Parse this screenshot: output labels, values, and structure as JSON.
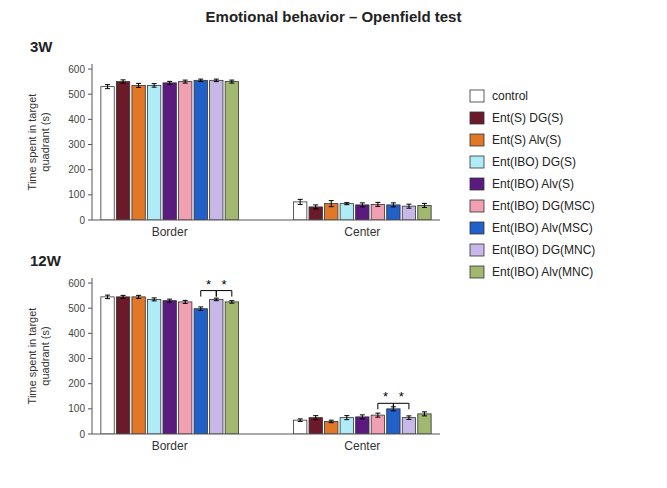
{
  "title": "Emotional behavior –  Openfield test",
  "chart_data": [
    {
      "type": "bar",
      "title": "3W",
      "ylabel": "Time spent in target\nquadrant (s)",
      "categories": [
        "Border",
        "Center"
      ],
      "series": [
        {
          "name": "control",
          "color": "#ffffff",
          "values": [
            530,
            72
          ],
          "errors": [
            8,
            10
          ]
        },
        {
          "name": "Ent(S) DG(S)",
          "color": "#6b1a2a",
          "values": [
            550,
            52
          ],
          "errors": [
            7,
            8
          ]
        },
        {
          "name": "Ent(S) Alv(S)",
          "color": "#e07828",
          "values": [
            535,
            65
          ],
          "errors": [
            8,
            12
          ]
        },
        {
          "name": "Ent(IBO) DG(S)",
          "color": "#b0ecf8",
          "values": [
            535,
            65
          ],
          "errors": [
            7,
            4
          ]
        },
        {
          "name": "Ent(IBO) Alv(S)",
          "color": "#5a1a80",
          "values": [
            545,
            60
          ],
          "errors": [
            6,
            8
          ]
        },
        {
          "name": "Ent(IBO) DG(MSC)",
          "color": "#f0a0b0",
          "values": [
            550,
            62
          ],
          "errors": [
            6,
            8
          ]
        },
        {
          "name": "Ent(IBO) Alv(MSC)",
          "color": "#2060c8",
          "values": [
            555,
            60
          ],
          "errors": [
            5,
            8
          ]
        },
        {
          "name": "Ent(IBO) DG(MNC)",
          "color": "#c8b8e8",
          "values": [
            555,
            55
          ],
          "errors": [
            5,
            8
          ]
        },
        {
          "name": "Ent(IBO) Alv(MNC)",
          "color": "#a0b870",
          "values": [
            550,
            58
          ],
          "errors": [
            6,
            8
          ]
        }
      ],
      "ylim": [
        0,
        620
      ],
      "yticks": [
        0,
        100,
        200,
        300,
        400,
        500,
        600
      ],
      "grid": false,
      "legend": "right"
    },
    {
      "type": "bar",
      "title": "12W",
      "ylabel": "Time spent in target\nquadrant (s)",
      "categories": [
        "Border",
        "Center"
      ],
      "series": [
        {
          "name": "control",
          "color": "#ffffff",
          "values": [
            545,
            55
          ],
          "errors": [
            7,
            5
          ]
        },
        {
          "name": "Ent(S) DG(S)",
          "color": "#6b1a2a",
          "values": [
            545,
            65
          ],
          "errors": [
            6,
            8
          ]
        },
        {
          "name": "Ent(S) Alv(S)",
          "color": "#e07828",
          "values": [
            545,
            50
          ],
          "errors": [
            6,
            5
          ]
        },
        {
          "name": "Ent(IBO) DG(S)",
          "color": "#b0ecf8",
          "values": [
            535,
            65
          ],
          "errors": [
            6,
            8
          ]
        },
        {
          "name": "Ent(IBO) Alv(S)",
          "color": "#5a1a80",
          "values": [
            530,
            68
          ],
          "errors": [
            6,
            8
          ]
        },
        {
          "name": "Ent(IBO) DG(MSC)",
          "color": "#f0a0b0",
          "values": [
            525,
            75
          ],
          "errors": [
            6,
            8
          ]
        },
        {
          "name": "Ent(IBO) Alv(MSC)",
          "color": "#2060c8",
          "values": [
            498,
            100
          ],
          "errors": [
            7,
            8
          ]
        },
        {
          "name": "Ent(IBO) DG(MNC)",
          "color": "#c8b8e8",
          "values": [
            535,
            65
          ],
          "errors": [
            5,
            7
          ]
        },
        {
          "name": "Ent(IBO) Alv(MNC)",
          "color": "#a0b870",
          "values": [
            525,
            80
          ],
          "errors": [
            5,
            8
          ]
        }
      ],
      "annotations": [
        {
          "label": "*",
          "category": "Border",
          "between": [
            "Ent(IBO) Alv(MSC)",
            "Ent(IBO) DG(MNC)"
          ],
          "y": 570
        },
        {
          "label": "*",
          "category": "Border",
          "between": [
            "Ent(IBO) DG(MNC)",
            "Ent(IBO) Alv(MNC)"
          ],
          "y": 570
        },
        {
          "label": "*",
          "category": "Center",
          "between": [
            "Ent(IBO) DG(MSC)",
            "Ent(IBO) Alv(MSC)"
          ],
          "y": 122
        },
        {
          "label": "*",
          "category": "Center",
          "between": [
            "Ent(IBO) Alv(MSC)",
            "Ent(IBO) DG(MNC)"
          ],
          "y": 122
        }
      ],
      "ylim": [
        0,
        620
      ],
      "yticks": [
        0,
        100,
        200,
        300,
        400,
        500,
        600
      ],
      "grid": false
    }
  ]
}
